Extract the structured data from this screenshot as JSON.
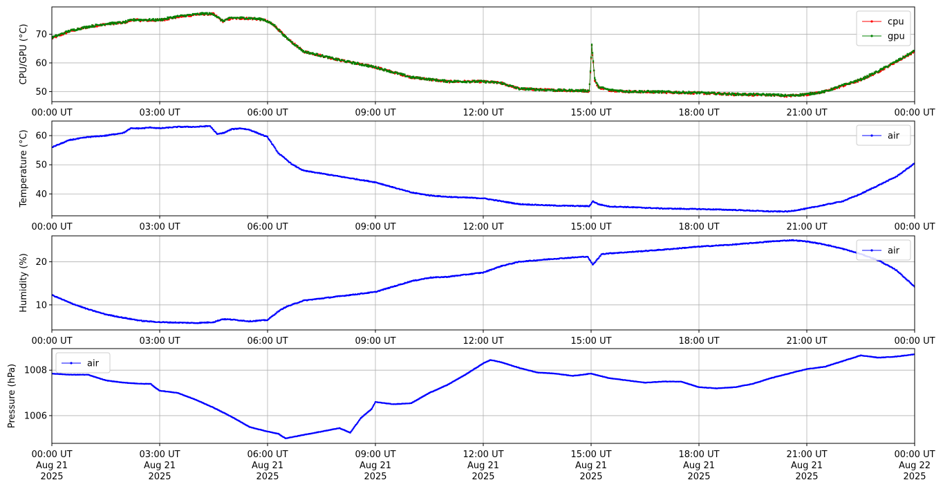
{
  "colors": {
    "cpu": "#ff0000",
    "gpu": "#008000",
    "air": "#0000ff",
    "grid": "#b0b0b0"
  },
  "chart_data": [
    {
      "type": "line",
      "ylabel": "CPU/GPU (°C)",
      "ylim": [
        46.5,
        79.5
      ],
      "yticks": [
        50,
        60,
        70
      ],
      "xlim": [
        0,
        24
      ],
      "xticks": [
        0,
        3,
        6,
        9,
        12,
        15,
        18,
        21,
        24
      ],
      "xtick_labels": [
        "00:00 UT",
        "03:00 UT",
        "06:00 UT",
        "09:00 UT",
        "12:00 UT",
        "15:00 UT",
        "18:00 UT",
        "21:00 UT",
        "00:00 UT"
      ],
      "grid": true,
      "legend": "top-right",
      "series": [
        {
          "name": "cpu",
          "color": "#ff0000",
          "x": [
            0,
            0.5,
            1,
            1.5,
            2,
            2.25,
            2.5,
            3,
            3.5,
            4,
            4.25,
            4.5,
            4.75,
            5,
            5.5,
            5.9,
            6.2,
            6.5,
            7,
            8,
            9,
            10,
            11,
            12,
            12.5,
            13,
            14,
            14.95,
            15.02,
            15.1,
            15.2,
            15.5,
            16,
            17,
            18,
            19,
            20,
            20.5,
            21,
            21.5,
            22,
            22.5,
            23,
            23.5,
            24
          ],
          "y": [
            68.5,
            71,
            72.5,
            73.5,
            74,
            75,
            74.8,
            74.8,
            76,
            76.8,
            77,
            77,
            74.5,
            75.5,
            75.5,
            75,
            73,
            69,
            64,
            61,
            58.5,
            55,
            53.5,
            53.5,
            53,
            51,
            50.5,
            50.2,
            66,
            54,
            51.5,
            50.5,
            50,
            49.8,
            49.5,
            49,
            48.8,
            48.5,
            49,
            50,
            52,
            54,
            57,
            60.5,
            64
          ]
        },
        {
          "name": "gpu",
          "color": "#008000",
          "x": [
            0,
            0.5,
            1,
            1.5,
            2,
            2.25,
            2.5,
            3,
            3.5,
            4,
            4.25,
            4.5,
            4.75,
            5,
            5.5,
            5.9,
            6.2,
            6.5,
            7,
            8,
            9,
            10,
            11,
            12,
            12.5,
            13,
            14,
            14.95,
            15.02,
            15.1,
            15.2,
            15.5,
            16,
            17,
            18,
            19,
            20,
            20.5,
            21,
            21.5,
            22,
            22.5,
            23,
            23.5,
            24
          ],
          "y": [
            68.8,
            71.2,
            72.6,
            73.6,
            74.1,
            75,
            75,
            75,
            76.2,
            76.9,
            77.2,
            77,
            74.6,
            75.7,
            75.6,
            75.1,
            73,
            69,
            64,
            61,
            58.5,
            55,
            53.6,
            53.5,
            53,
            51,
            50.5,
            50.3,
            66.5,
            54.5,
            51.7,
            50.6,
            50.1,
            49.9,
            49.6,
            49.1,
            48.9,
            48.6,
            49.1,
            50,
            52.2,
            54.2,
            57.2,
            60.6,
            64.2
          ]
        }
      ]
    },
    {
      "type": "line",
      "ylabel": "Temperature (°C)",
      "ylim": [
        32.5,
        65
      ],
      "yticks": [
        40,
        50,
        60
      ],
      "xlim": [
        0,
        24
      ],
      "xticks": [
        0,
        3,
        6,
        9,
        12,
        15,
        18,
        21,
        24
      ],
      "xtick_labels": [
        "00:00 UT",
        "03:00 UT",
        "06:00 UT",
        "09:00 UT",
        "12:00 UT",
        "15:00 UT",
        "18:00 UT",
        "21:00 UT",
        "00:00 UT"
      ],
      "grid": true,
      "legend": "top-right",
      "series": [
        {
          "name": "air",
          "color": "#0000ff",
          "x": [
            0,
            0.5,
            1,
            1.5,
            2,
            2.2,
            2.5,
            2.75,
            3,
            3.5,
            4,
            4.4,
            4.6,
            4.8,
            5,
            5.25,
            5.5,
            6,
            6.3,
            6.7,
            7,
            8,
            9,
            10,
            10.5,
            11,
            12,
            13,
            14,
            14.95,
            15.05,
            15.2,
            15.5,
            16,
            17,
            18,
            19,
            20,
            20.5,
            21,
            22,
            22.5,
            23,
            23.5,
            24
          ],
          "y": [
            56,
            58.5,
            59.5,
            60,
            61,
            62.5,
            62.5,
            62.8,
            62.5,
            63,
            63,
            63.3,
            60.5,
            61,
            62.2,
            62.5,
            62,
            59.5,
            54,
            50,
            48,
            46,
            44,
            40.5,
            39.5,
            39,
            38.5,
            36.5,
            36,
            35.8,
            37.5,
            36.5,
            35.7,
            35.5,
            35,
            34.8,
            34.5,
            34,
            34,
            35,
            37.5,
            40,
            43,
            46,
            50.5
          ]
        }
      ]
    },
    {
      "type": "line",
      "ylabel": "Humidity (%)",
      "ylim": [
        4.2,
        26
      ],
      "yticks": [
        10,
        20
      ],
      "xlim": [
        0,
        24
      ],
      "xticks": [
        0,
        3,
        6,
        9,
        12,
        15,
        18,
        21,
        24
      ],
      "xtick_labels": [
        "00:00 UT",
        "03:00 UT",
        "06:00 UT",
        "09:00 UT",
        "12:00 UT",
        "15:00 UT",
        "18:00 UT",
        "21:00 UT",
        "00:00 UT"
      ],
      "grid": true,
      "legend": "top-right",
      "series": [
        {
          "name": "air",
          "color": "#0000ff",
          "x": [
            0,
            0.5,
            1,
            1.5,
            2,
            2.5,
            3,
            3.5,
            4,
            4.5,
            4.75,
            5,
            5.5,
            6,
            6.3,
            6.5,
            7,
            8,
            9,
            10,
            10.5,
            11,
            12,
            12.5,
            13,
            14,
            14.9,
            15.05,
            15.3,
            15.6,
            16,
            17,
            18,
            19,
            20,
            20.6,
            21,
            21.5,
            22,
            22.5,
            23,
            23.5,
            24
          ],
          "y": [
            12.3,
            10.5,
            9,
            7.8,
            7,
            6.3,
            6,
            5.9,
            5.8,
            6,
            6.7,
            6.6,
            6.2,
            6.5,
            8.5,
            9.5,
            11,
            12,
            13,
            15.5,
            16.3,
            16.5,
            17.5,
            19,
            20,
            20.7,
            21.2,
            19.3,
            21.8,
            22,
            22.2,
            22.8,
            23.5,
            24,
            24.7,
            25,
            24.7,
            24,
            23,
            21.8,
            20.3,
            18,
            14.2
          ]
        }
      ]
    },
    {
      "type": "line",
      "ylabel": "Pressure (hPa)",
      "ylim": [
        1004.78,
        1008.95
      ],
      "yticks": [
        1006,
        1008
      ],
      "ytick_labels": [
        "1006",
        "1008"
      ],
      "xlim": [
        0,
        24
      ],
      "xticks": [
        0,
        3,
        6,
        9,
        12,
        15,
        18,
        21,
        24
      ],
      "xtick_labels": [
        "00:00 UT",
        "03:00 UT",
        "06:00 UT",
        "09:00 UT",
        "12:00 UT",
        "15:00 UT",
        "18:00 UT",
        "21:00 UT",
        "00:00 UT"
      ],
      "xtick_dates": [
        [
          "Aug 21",
          "2025"
        ],
        [
          "Aug 21",
          "2025"
        ],
        [
          "Aug 21",
          "2025"
        ],
        [
          "Aug 21",
          "2025"
        ],
        [
          "Aug 21",
          "2025"
        ],
        [
          "Aug 21",
          "2025"
        ],
        [
          "Aug 21",
          "2025"
        ],
        [
          "Aug 21",
          "2025"
        ],
        [
          "Aug 22",
          "2025"
        ]
      ],
      "grid": true,
      "legend": "top-left",
      "series": [
        {
          "name": "air",
          "color": "#0000ff",
          "x": [
            0,
            0.5,
            1,
            1.5,
            2,
            2.5,
            2.75,
            2.9,
            3,
            3.5,
            4,
            4.5,
            5,
            5.5,
            6,
            6.3,
            6.5,
            7,
            7.5,
            8,
            8.3,
            8.6,
            8.9,
            9,
            9.5,
            10,
            10.5,
            11,
            11.5,
            12,
            12.2,
            12.5,
            13,
            13.5,
            14,
            14.5,
            15,
            15.5,
            16,
            16.5,
            17,
            17.5,
            18,
            18.5,
            19,
            19.5,
            20,
            20.5,
            21,
            21.5,
            22,
            22.5,
            23,
            23.5,
            24
          ],
          "y": [
            1007.85,
            1007.8,
            1007.8,
            1007.55,
            1007.45,
            1007.4,
            1007.4,
            1007.2,
            1007.1,
            1007,
            1006.7,
            1006.35,
            1005.95,
            1005.5,
            1005.3,
            1005.2,
            1005.0,
            1005.15,
            1005.3,
            1005.45,
            1005.25,
            1005.9,
            1006.3,
            1006.6,
            1006.5,
            1006.55,
            1007,
            1007.35,
            1007.8,
            1008.3,
            1008.45,
            1008.35,
            1008.1,
            1007.9,
            1007.85,
            1007.75,
            1007.85,
            1007.65,
            1007.55,
            1007.45,
            1007.5,
            1007.5,
            1007.25,
            1007.2,
            1007.25,
            1007.4,
            1007.65,
            1007.85,
            1008.05,
            1008.15,
            1008.4,
            1008.65,
            1008.55,
            1008.6,
            1008.7
          ]
        }
      ]
    }
  ]
}
